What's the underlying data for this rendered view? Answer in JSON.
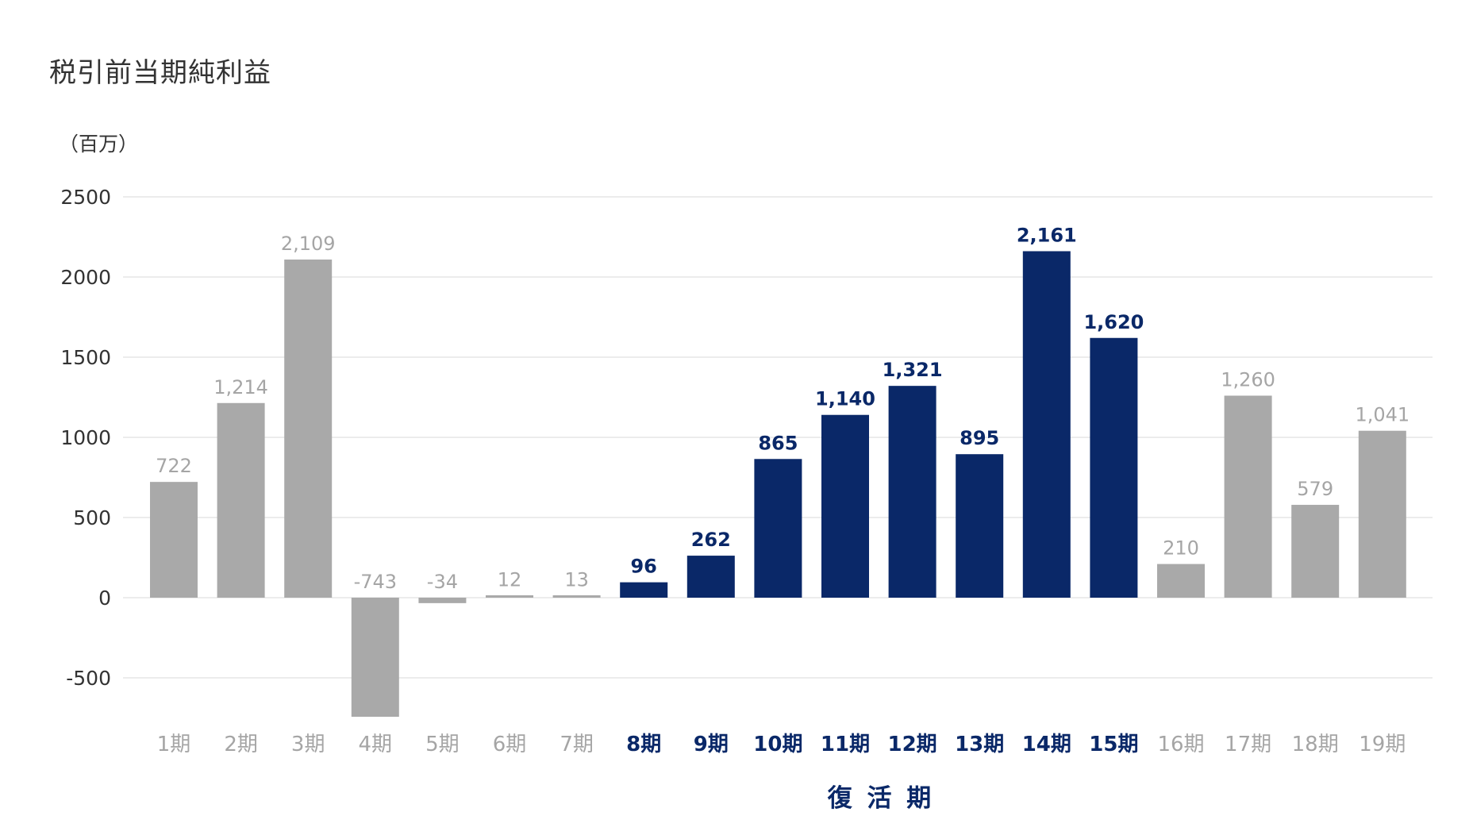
{
  "colors": {
    "highlight": "#0a2868",
    "normal_bar": "#a9a9a9",
    "normal_label": "#a5a5a5",
    "tick_text": "#333333",
    "gridline": "#e6e6e6"
  },
  "chart_data": {
    "type": "bar",
    "title": "税引前当期純利益",
    "ylabel": "（百万）",
    "xlabel": "復 活 期",
    "ylim": [
      -750,
      2500
    ],
    "yticks": [
      2500,
      2000,
      1500,
      1000,
      500,
      0,
      -500
    ],
    "grid": true,
    "legend": "none",
    "categories": [
      "1期",
      "2期",
      "3期",
      "4期",
      "5期",
      "6期",
      "7期",
      "8期",
      "9期",
      "10期",
      "11期",
      "12期",
      "13期",
      "14期",
      "15期",
      "16期",
      "17期",
      "18期",
      "19期"
    ],
    "values": [
      722,
      1214,
      2109,
      -743,
      -34,
      12,
      13,
      96,
      262,
      865,
      1140,
      1321,
      895,
      2161,
      1620,
      210,
      1260,
      579,
      1041
    ],
    "data_labels": [
      "722",
      "1,214",
      "2,109",
      "-743",
      "-34",
      "12",
      "13",
      "96",
      "262",
      "865",
      "1,140",
      "1,321",
      "895",
      "2,161",
      "1,620",
      "210",
      "1,260",
      "579",
      "1,041"
    ],
    "highlighted": [
      false,
      false,
      false,
      false,
      false,
      false,
      false,
      true,
      true,
      true,
      true,
      true,
      true,
      true,
      true,
      false,
      false,
      false,
      false
    ]
  }
}
